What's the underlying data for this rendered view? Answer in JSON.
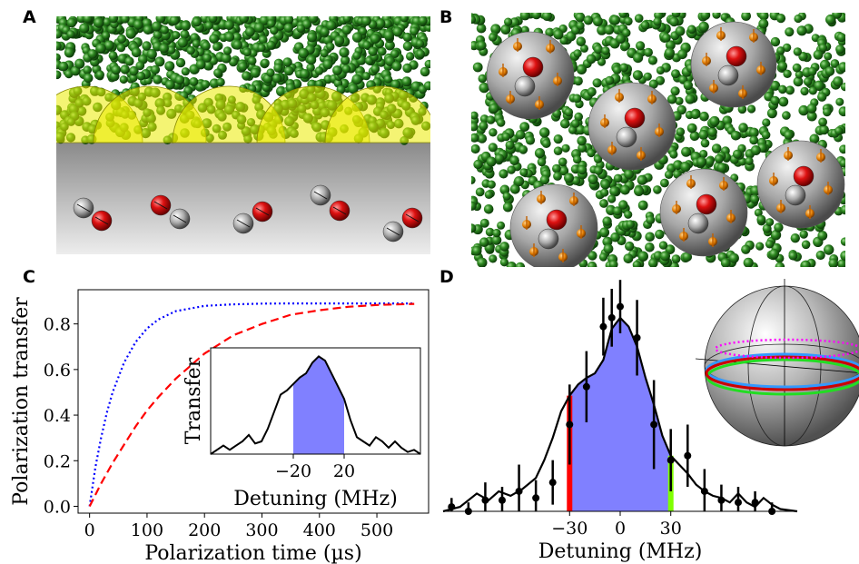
{
  "panels": {
    "a": "A",
    "b": "B",
    "c": "C",
    "d": "D"
  },
  "chart_data": [
    {
      "type": "line",
      "panel": "C",
      "xlabel": "Polarization time (µs)",
      "ylabel": "Polarization transfer",
      "xlim": [
        -20,
        590
      ],
      "ylim": [
        -0.03,
        0.95
      ],
      "xticks": [
        0,
        100,
        200,
        300,
        400,
        500
      ],
      "yticks": [
        0.0,
        0.2,
        0.4,
        0.6,
        0.8
      ],
      "grid": false,
      "series": [
        {
          "color": "#0000ff",
          "style": "dotted",
          "x": [
            0,
            10,
            20,
            30,
            40,
            60,
            80,
            100,
            120,
            150,
            200,
            250,
            300,
            350,
            400,
            450,
            500,
            565
          ],
          "y": [
            0.0,
            0.17,
            0.3,
            0.41,
            0.5,
            0.63,
            0.72,
            0.78,
            0.82,
            0.856,
            0.879,
            0.886,
            0.889,
            0.89,
            0.89,
            0.89,
            0.89,
            0.89
          ]
        },
        {
          "color": "#ff0000",
          "style": "dashed",
          "x": [
            0,
            20,
            40,
            60,
            80,
            100,
            120,
            150,
            200,
            250,
            300,
            350,
            400,
            450,
            500,
            565
          ],
          "y": [
            0.0,
            0.1,
            0.19,
            0.27,
            0.35,
            0.42,
            0.48,
            0.56,
            0.67,
            0.75,
            0.8,
            0.84,
            0.86,
            0.875,
            0.883,
            0.888
          ]
        }
      ],
      "inset": {
        "type": "area",
        "xlabel": "Detuning (MHz)",
        "ylabel": "Transfer",
        "xlim": [
          -85,
          80
        ],
        "ylim": [
          0,
          0.5
        ],
        "xticks": [
          -20,
          20
        ],
        "xtick_labels": [
          "−20",
          "20"
        ],
        "highlight": {
          "from": -20,
          "to": 20,
          "color": "#8080ff"
        },
        "x": [
          -85,
          -80,
          -75,
          -70,
          -65,
          -60,
          -55,
          -50,
          -45,
          -40,
          -35,
          -30,
          -25,
          -20,
          -15,
          -10,
          -5,
          0,
          5,
          10,
          15,
          20,
          25,
          30,
          35,
          40,
          45,
          50,
          55,
          60,
          65,
          70,
          75,
          80
        ],
        "y": [
          0.0,
          0.02,
          0.04,
          0.02,
          0.04,
          0.06,
          0.09,
          0.05,
          0.06,
          0.12,
          0.2,
          0.28,
          0.3,
          0.33,
          0.36,
          0.38,
          0.43,
          0.46,
          0.44,
          0.38,
          0.32,
          0.26,
          0.16,
          0.08,
          0.06,
          0.04,
          0.08,
          0.06,
          0.03,
          0.06,
          0.03,
          0.01,
          0.02,
          0.0
        ]
      }
    },
    {
      "type": "scatter",
      "panel": "D",
      "xlabel": "Detuning (MHz)",
      "xlim": [
        -105,
        105
      ],
      "ylim": [
        0,
        1.0
      ],
      "xticks": [
        -30,
        0,
        30
      ],
      "xtick_labels": [
        "−30",
        "0",
        "30"
      ],
      "highlight": {
        "from": -30,
        "to": 30,
        "color": "#8080ff",
        "left_edge_color": "#ff0000",
        "right_edge_color": "#7fff00"
      },
      "points": {
        "x": [
          -100,
          -90,
          -80,
          -70,
          -60,
          -50,
          -40,
          -30,
          -20,
          -10,
          -5,
          0,
          10,
          20,
          30,
          40,
          50,
          60,
          70,
          80,
          90
        ],
        "y": [
          0.02,
          0.0,
          0.05,
          0.05,
          0.09,
          0.06,
          0.13,
          0.39,
          0.56,
          0.83,
          0.87,
          0.92,
          0.78,
          0.39,
          0.23,
          0.25,
          0.09,
          0.05,
          0.04,
          0.04,
          0.0
        ],
        "err": [
          0.04,
          0.04,
          0.08,
          0.06,
          0.12,
          0.08,
          0.1,
          0.18,
          0.16,
          0.13,
          0.13,
          0.12,
          0.17,
          0.2,
          0.14,
          0.14,
          0.1,
          0.07,
          0.07,
          0.05,
          0.04
        ]
      },
      "fit_line": {
        "x": [
          -105,
          -95,
          -85,
          -78,
          -72,
          -65,
          -58,
          -50,
          -45,
          -40,
          -35,
          -30,
          -25,
          -20,
          -15,
          -10,
          -5,
          0,
          5,
          10,
          15,
          20,
          25,
          30,
          35,
          40,
          45,
          50,
          55,
          60,
          65,
          70,
          75,
          80,
          85,
          90,
          95,
          105
        ],
        "y": [
          0.0,
          0.02,
          0.08,
          0.05,
          0.09,
          0.07,
          0.1,
          0.15,
          0.23,
          0.33,
          0.45,
          0.52,
          0.57,
          0.6,
          0.62,
          0.68,
          0.82,
          0.87,
          0.83,
          0.74,
          0.6,
          0.48,
          0.34,
          0.25,
          0.21,
          0.17,
          0.12,
          0.09,
          0.07,
          0.06,
          0.04,
          0.08,
          0.04,
          0.02,
          0.06,
          0.03,
          0.01,
          0.0
        ]
      }
    }
  ]
}
